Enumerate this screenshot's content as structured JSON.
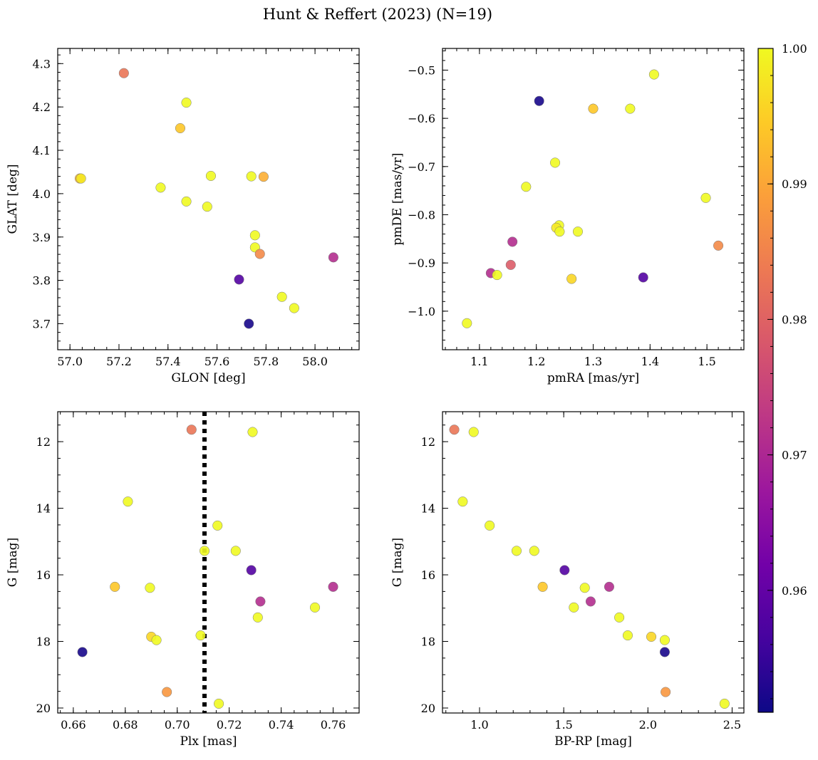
{
  "title": "Hunt & Reffert (2023) (N=19)",
  "colorbar": {
    "min": 0.951,
    "max": 1.0,
    "ticks": [
      0.96,
      0.97,
      0.98,
      0.99,
      1.0
    ],
    "tick_labels": [
      "0.96",
      "0.97",
      "0.98",
      "0.99",
      "1.00"
    ],
    "colormap": "plasma",
    "stops": [
      "#0d0887",
      "#46039f",
      "#7201a8",
      "#9c179e",
      "#bd3786",
      "#d8576b",
      "#ed7953",
      "#fb9f3a",
      "#fdca26",
      "#f0f921"
    ]
  },
  "chart_data": [
    {
      "type": "scatter",
      "xlabel": "GLON [deg]",
      "ylabel": "GLAT [deg]",
      "xlim": [
        56.95,
        58.18
      ],
      "ylim": [
        3.64,
        4.335
      ],
      "invert_y": false,
      "xticks": [
        57.0,
        57.2,
        57.4,
        57.6,
        57.8,
        58.0
      ],
      "xtick_labels": [
        "57.0",
        "57.2",
        "57.4",
        "57.6",
        "57.8",
        "58.0"
      ],
      "xminor": 0.05,
      "yticks": [
        3.7,
        3.8,
        3.9,
        4.0,
        4.1,
        4.2,
        4.3
      ],
      "ytick_labels": [
        "3.7",
        "3.8",
        "3.9",
        "4.0",
        "4.1",
        "4.2",
        "4.3"
      ],
      "yminor": 0.02,
      "points": [
        {
          "x": 57.22,
          "y": 4.278,
          "c": 0.983
        },
        {
          "x": 57.475,
          "y": 4.21,
          "c": 1.0
        },
        {
          "x": 57.45,
          "y": 4.151,
          "c": 0.994
        },
        {
          "x": 57.04,
          "y": 4.035,
          "c": 0.992
        },
        {
          "x": 57.045,
          "y": 4.035,
          "c": 0.998
        },
        {
          "x": 57.37,
          "y": 4.014,
          "c": 1.0
        },
        {
          "x": 57.575,
          "y": 4.041,
          "c": 1.0
        },
        {
          "x": 57.74,
          "y": 4.04,
          "c": 1.0
        },
        {
          "x": 57.79,
          "y": 4.039,
          "c": 0.991
        },
        {
          "x": 57.475,
          "y": 3.982,
          "c": 1.0
        },
        {
          "x": 57.56,
          "y": 3.97,
          "c": 1.0
        },
        {
          "x": 57.755,
          "y": 3.904,
          "c": 1.0
        },
        {
          "x": 57.755,
          "y": 3.876,
          "c": 1.0
        },
        {
          "x": 57.775,
          "y": 3.861,
          "c": 0.986
        },
        {
          "x": 58.075,
          "y": 3.853,
          "c": 0.971
        },
        {
          "x": 57.69,
          "y": 3.802,
          "c": 0.958
        },
        {
          "x": 57.865,
          "y": 3.762,
          "c": 1.0
        },
        {
          "x": 57.915,
          "y": 3.736,
          "c": 1.0
        },
        {
          "x": 57.73,
          "y": 3.7,
          "c": 0.952
        }
      ]
    },
    {
      "type": "scatter",
      "xlabel": "pmRA [mas/yr]",
      "ylabel": "pmDE [mas/yr]",
      "xlim": [
        1.035,
        1.565
      ],
      "ylim": [
        -1.08,
        -0.455
      ],
      "invert_y": false,
      "xticks": [
        1.1,
        1.2,
        1.3,
        1.4,
        1.5
      ],
      "xtick_labels": [
        "1.1",
        "1.2",
        "1.3",
        "1.4",
        "1.5"
      ],
      "xminor": 0.02,
      "yticks": [
        -1.0,
        -0.9,
        -0.8,
        -0.7,
        -0.6,
        -0.5
      ],
      "ytick_labels": [
        "−1.0",
        "−0.9",
        "−0.8",
        "−0.7",
        "−0.6",
        "−0.5"
      ],
      "yminor": 0.02,
      "points": [
        {
          "x": 1.407,
          "y": -0.509,
          "c": 1.0
        },
        {
          "x": 1.205,
          "y": -0.564,
          "c": 0.952
        },
        {
          "x": 1.3,
          "y": -0.58,
          "c": 0.994
        },
        {
          "x": 1.365,
          "y": -0.58,
          "c": 1.0
        },
        {
          "x": 1.233,
          "y": -0.692,
          "c": 1.0
        },
        {
          "x": 1.182,
          "y": -0.742,
          "c": 1.0
        },
        {
          "x": 1.498,
          "y": -0.765,
          "c": 1.0
        },
        {
          "x": 1.24,
          "y": -0.822,
          "c": 1.0
        },
        {
          "x": 1.235,
          "y": -0.827,
          "c": 0.998
        },
        {
          "x": 1.241,
          "y": -0.835,
          "c": 1.0
        },
        {
          "x": 1.273,
          "y": -0.835,
          "c": 1.0
        },
        {
          "x": 1.158,
          "y": -0.856,
          "c": 0.971
        },
        {
          "x": 1.52,
          "y": -0.864,
          "c": 0.986
        },
        {
          "x": 1.155,
          "y": -0.904,
          "c": 0.979
        },
        {
          "x": 1.12,
          "y": -0.921,
          "c": 0.971
        },
        {
          "x": 1.131,
          "y": -0.925,
          "c": 1.0
        },
        {
          "x": 1.388,
          "y": -0.93,
          "c": 0.958
        },
        {
          "x": 1.262,
          "y": -0.933,
          "c": 0.996
        },
        {
          "x": 1.078,
          "y": -1.025,
          "c": 1.0
        }
      ]
    },
    {
      "type": "scatter",
      "xlabel": "Plx [mas]",
      "ylabel": "G [mag]",
      "xlim": [
        0.654,
        0.77
      ],
      "ylim": [
        20.15,
        11.1
      ],
      "invert_y": true,
      "vline": 0.7105,
      "xticks": [
        0.66,
        0.68,
        0.7,
        0.72,
        0.74,
        0.76
      ],
      "xtick_labels": [
        "0.66",
        "0.68",
        "0.70",
        "0.72",
        "0.74",
        "0.76"
      ],
      "xminor": 0.005,
      "yticks": [
        12,
        14,
        16,
        18,
        20
      ],
      "ytick_labels": [
        "12",
        "14",
        "16",
        "18",
        "20"
      ],
      "yminor": 0.5,
      "points": [
        {
          "x": 0.7055,
          "y": 11.64,
          "c": 0.983
        },
        {
          "x": 0.729,
          "y": 11.71,
          "c": 1.0
        },
        {
          "x": 0.681,
          "y": 13.8,
          "c": 1.0
        },
        {
          "x": 0.7155,
          "y": 14.52,
          "c": 1.0
        },
        {
          "x": 0.7105,
          "y": 15.28,
          "c": 1.0
        },
        {
          "x": 0.7225,
          "y": 15.28,
          "c": 1.0
        },
        {
          "x": 0.7285,
          "y": 15.86,
          "c": 0.958
        },
        {
          "x": 0.676,
          "y": 16.36,
          "c": 0.994
        },
        {
          "x": 0.6895,
          "y": 16.39,
          "c": 1.0
        },
        {
          "x": 0.76,
          "y": 16.36,
          "c": 0.971
        },
        {
          "x": 0.732,
          "y": 16.8,
          "c": 0.971
        },
        {
          "x": 0.753,
          "y": 16.98,
          "c": 1.0
        },
        {
          "x": 0.731,
          "y": 17.28,
          "c": 1.0
        },
        {
          "x": 0.709,
          "y": 17.82,
          "c": 1.0
        },
        {
          "x": 0.69,
          "y": 17.86,
          "c": 0.996
        },
        {
          "x": 0.692,
          "y": 17.96,
          "c": 1.0
        },
        {
          "x": 0.6635,
          "y": 18.32,
          "c": 0.952
        },
        {
          "x": 0.696,
          "y": 19.52,
          "c": 0.988
        },
        {
          "x": 0.716,
          "y": 19.87,
          "c": 1.0
        }
      ]
    },
    {
      "type": "scatter",
      "xlabel": "BP-RP [mag]",
      "ylabel": "G [mag]",
      "xlim": [
        0.78,
        2.57
      ],
      "ylim": [
        20.15,
        11.1
      ],
      "invert_y": true,
      "xticks": [
        1.0,
        1.5,
        2.0,
        2.5
      ],
      "xtick_labels": [
        "1.0",
        "1.5",
        "2.0",
        "2.5"
      ],
      "xminor": 0.1,
      "yticks": [
        12,
        14,
        16,
        18,
        20
      ],
      "ytick_labels": [
        "12",
        "14",
        "16",
        "18",
        "20"
      ],
      "yminor": 0.5,
      "points": [
        {
          "x": 0.85,
          "y": 11.64,
          "c": 0.983
        },
        {
          "x": 0.965,
          "y": 11.71,
          "c": 1.0
        },
        {
          "x": 0.9,
          "y": 13.8,
          "c": 1.0
        },
        {
          "x": 1.06,
          "y": 14.52,
          "c": 1.0
        },
        {
          "x": 1.22,
          "y": 15.28,
          "c": 1.0
        },
        {
          "x": 1.325,
          "y": 15.28,
          "c": 1.0
        },
        {
          "x": 1.505,
          "y": 15.86,
          "c": 0.958
        },
        {
          "x": 1.375,
          "y": 16.36,
          "c": 0.994
        },
        {
          "x": 1.625,
          "y": 16.39,
          "c": 1.0
        },
        {
          "x": 1.77,
          "y": 16.36,
          "c": 0.971
        },
        {
          "x": 1.66,
          "y": 16.8,
          "c": 0.971
        },
        {
          "x": 1.56,
          "y": 16.98,
          "c": 1.0
        },
        {
          "x": 1.83,
          "y": 17.28,
          "c": 1.0
        },
        {
          "x": 1.88,
          "y": 17.82,
          "c": 1.0
        },
        {
          "x": 2.02,
          "y": 17.86,
          "c": 0.996
        },
        {
          "x": 2.1,
          "y": 17.96,
          "c": 1.0
        },
        {
          "x": 2.1,
          "y": 18.32,
          "c": 0.952
        },
        {
          "x": 2.105,
          "y": 19.52,
          "c": 0.988
        },
        {
          "x": 2.455,
          "y": 19.87,
          "c": 1.0
        }
      ]
    }
  ]
}
